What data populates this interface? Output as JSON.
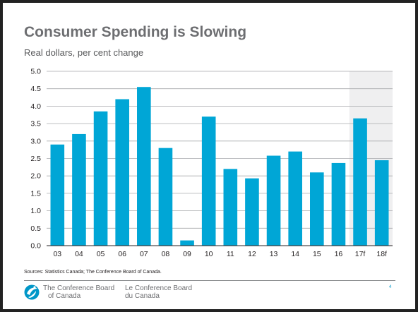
{
  "slide": {
    "title": "Consumer Spending is Slowing",
    "subtitle": "Real dollars, per cent change",
    "sources": "Sources: Statistics Canada; The Conference Board of Canada.",
    "page_number": "4"
  },
  "footer": {
    "org_en_line1": "The Conference Board",
    "org_en_line2": "of Canada",
    "org_fr_line1": "Le Conference Board",
    "org_fr_line2": "du Canada",
    "logo_icon": "conference-board-swirl-icon"
  },
  "colors": {
    "bar": "#00a6d6",
    "forecast_shade": "#efeff0",
    "gridline": "#a7a9ac",
    "title": "#6d6e71",
    "accent": "#0097c8"
  },
  "chart_data": {
    "type": "bar",
    "categories": [
      "03",
      "04",
      "05",
      "06",
      "07",
      "08",
      "09",
      "10",
      "11",
      "12",
      "13",
      "14",
      "15",
      "16",
      "17f",
      "18f"
    ],
    "values": [
      2.9,
      3.2,
      3.85,
      4.2,
      4.55,
      2.8,
      0.15,
      3.7,
      2.2,
      1.93,
      2.58,
      2.7,
      2.1,
      2.37,
      3.65,
      2.45
    ],
    "ylim": [
      0,
      5
    ],
    "yticks": [
      "0.0",
      "0.5",
      "1.0",
      "1.5",
      "2.0",
      "2.5",
      "3.0",
      "3.5",
      "4.0",
      "4.5",
      "5.0"
    ],
    "forecast_categories": [
      "17f",
      "18f"
    ],
    "grid": true,
    "legend": "none"
  }
}
